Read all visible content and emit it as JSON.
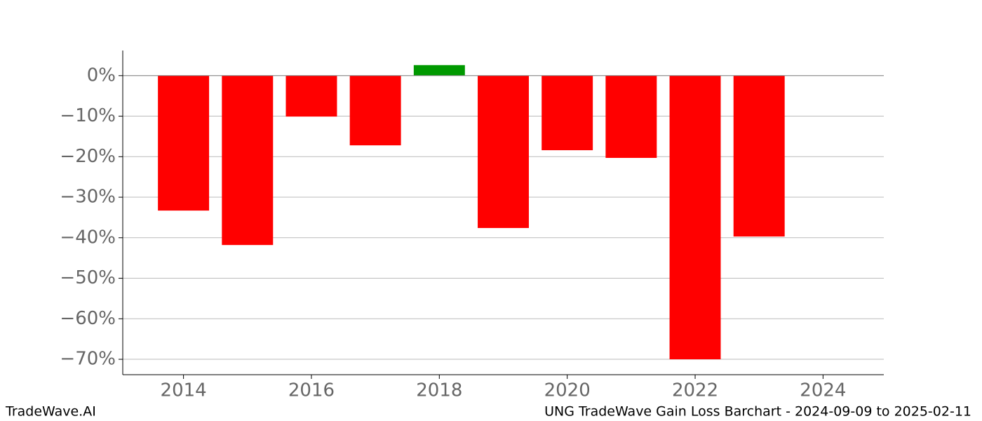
{
  "chart_data": {
    "type": "bar",
    "title": "UNG TradeWave Gain Loss Barchart - 2024-09-09 to 2025-02-11",
    "watermark": "TradeWave.AI",
    "x": [
      2014,
      2015,
      2016,
      2017,
      2018,
      2019,
      2020,
      2021,
      2022,
      2023
    ],
    "values": [
      -33.3,
      -41.8,
      -10.1,
      -17.2,
      2.6,
      -37.6,
      -18.4,
      -20.3,
      -70.0,
      -39.7
    ],
    "colors": [
      "#ff0000",
      "#ff0000",
      "#ff0000",
      "#ff0000",
      "#009900",
      "#ff0000",
      "#ff0000",
      "#ff0000",
      "#ff0000",
      "#ff0000"
    ],
    "xlim": [
      2013.05,
      2024.95
    ],
    "xticks": [
      2014,
      2016,
      2018,
      2020,
      2022,
      2024
    ],
    "ylim": [
      -73.8,
      6.2
    ],
    "yticks": [
      {
        "value": 0,
        "label": "0%"
      },
      {
        "value": -10,
        "label": "−10%"
      },
      {
        "value": -20,
        "label": "−20%"
      },
      {
        "value": -30,
        "label": "−30%"
      },
      {
        "value": -40,
        "label": "−40%"
      },
      {
        "value": -50,
        "label": "−50%"
      },
      {
        "value": -60,
        "label": "−60%"
      },
      {
        "value": -70,
        "label": "−70%"
      }
    ],
    "grid": true
  }
}
